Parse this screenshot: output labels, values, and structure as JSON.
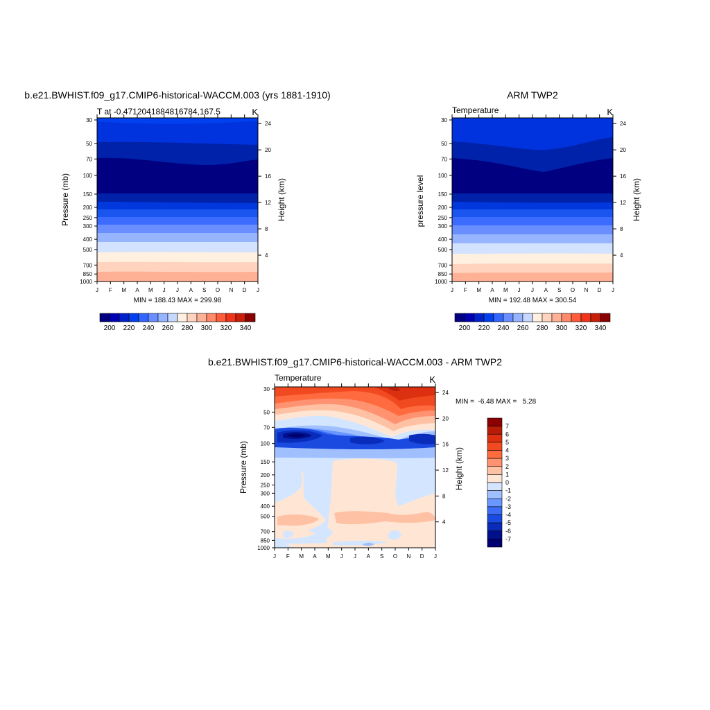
{
  "months": [
    "J",
    "F",
    "M",
    "A",
    "M",
    "J",
    "J",
    "A",
    "S",
    "O",
    "N",
    "D",
    "J"
  ],
  "pressure_ticks": [
    "30",
    "50",
    "70",
    "100",
    "150",
    "200",
    "250",
    "300",
    "400",
    "500",
    "700",
    "850",
    "1000"
  ],
  "height_ticks": [
    "24",
    "20",
    "16",
    "12",
    "8",
    "4"
  ],
  "colorbar_small": {
    "labels": [
      "200",
      "220",
      "240",
      "260",
      "280",
      "300",
      "320",
      "340"
    ],
    "colors": [
      "#000080",
      "#0000b3",
      "#0022cc",
      "#0040ee",
      "#3366ff",
      "#6a8eff",
      "#97b4ff",
      "#c6d8ff",
      "#fff0e0",
      "#ffd3bd",
      "#ffb196",
      "#ff8a6a",
      "#ff5c3c",
      "#f0341a",
      "#c81e0a",
      "#8b0000"
    ]
  },
  "colorbar_diff": {
    "labels": [
      "7",
      "6",
      "5",
      "4",
      "3",
      "2",
      "1",
      "0",
      "-1",
      "-2",
      "-3",
      "-4",
      "-5",
      "-6",
      "-7"
    ],
    "colors": [
      "#8b0000",
      "#b71c08",
      "#dd3010",
      "#f24a20",
      "#ff6a3e",
      "#ff9270",
      "#ffc1a4",
      "#ffe6d4",
      "#d4e6ff",
      "#9fbfff",
      "#6a96ff",
      "#3a6cf5",
      "#1a4ae0",
      "#0a2cbb",
      "#00108a",
      "#000070"
    ]
  },
  "chart_data": [
    {
      "type": "contour",
      "title": "b.e21.BWHIST.f09_g17.CMIP6-historical-WACCM.003 (yrs 1881-1910)",
      "subtitle_left": "T at -0.4712041884816784,167.5",
      "subtitle_right": "K",
      "ylabel": "Pressure (mb)",
      "ylabel_right": "Height (km)",
      "stats": "MIN = 188.43 MAX = 299.98",
      "x": [
        "J",
        "F",
        "M",
        "A",
        "M",
        "J",
        "J",
        "A",
        "S",
        "O",
        "N",
        "D",
        "J"
      ],
      "pressure_levels": [
        30,
        50,
        70,
        100,
        150,
        200,
        250,
        300,
        400,
        500,
        700,
        850,
        1000
      ],
      "range": [
        188.43,
        299.98
      ]
    },
    {
      "type": "contour",
      "title": "ARM TWP2",
      "subtitle_left": "Temperature",
      "subtitle_right": "K",
      "ylabel": "pressure level",
      "ylabel_right": "Height (km)",
      "stats": "MIN = 192.48 MAX = 300.54",
      "x": [
        "J",
        "F",
        "M",
        "A",
        "M",
        "J",
        "J",
        "A",
        "S",
        "O",
        "N",
        "D",
        "J"
      ],
      "pressure_levels": [
        30,
        50,
        70,
        100,
        150,
        200,
        250,
        300,
        400,
        500,
        700,
        850,
        1000
      ],
      "range": [
        192.48,
        300.54
      ]
    },
    {
      "type": "contour",
      "title": "b.e21.BWHIST.f09_g17.CMIP6-historical-WACCM.003 - ARM TWP2",
      "subtitle_left": "Temperature",
      "subtitle_right": "K",
      "ylabel": "Pressure (mb)",
      "ylabel_right": "Height (km)",
      "stats": "MIN =  -6.48 MAX =   5.28",
      "x": [
        "J",
        "F",
        "M",
        "A",
        "M",
        "J",
        "J",
        "A",
        "S",
        "O",
        "N",
        "D",
        "J"
      ],
      "pressure_levels": [
        30,
        50,
        70,
        100,
        150,
        200,
        250,
        300,
        400,
        500,
        700,
        850,
        1000
      ],
      "range": [
        -6.48,
        5.28
      ]
    }
  ]
}
